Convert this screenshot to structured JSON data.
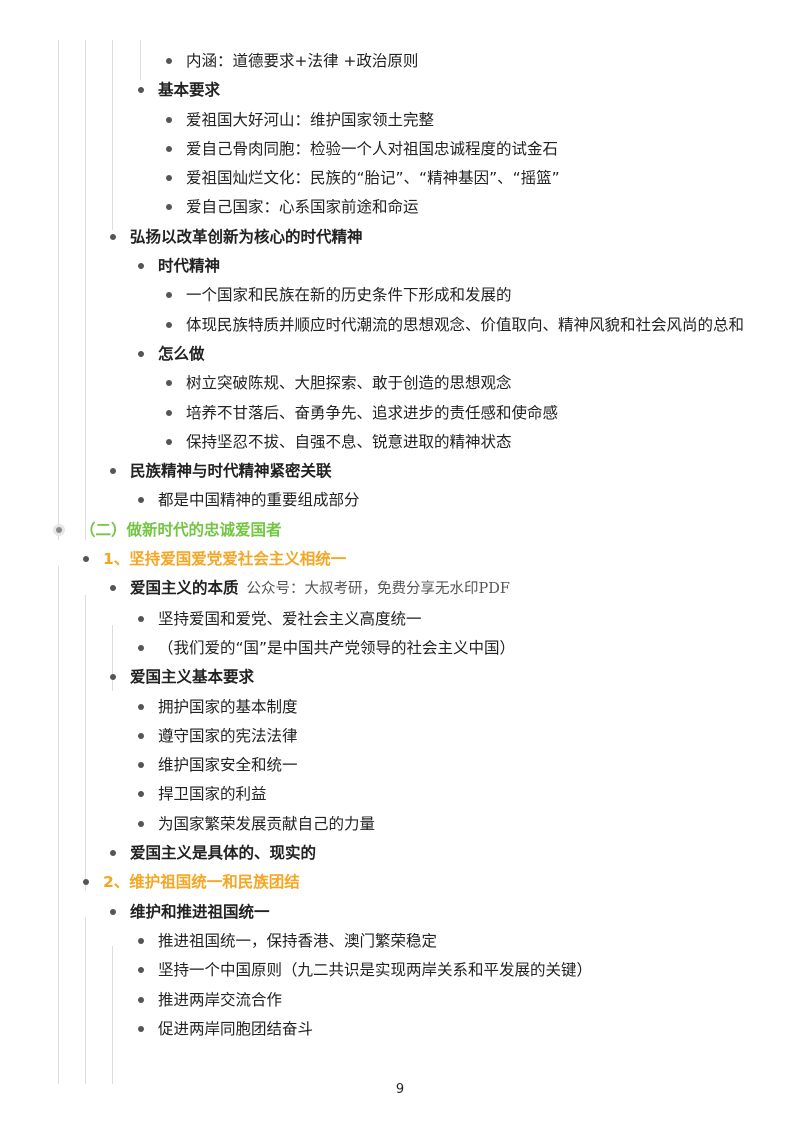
{
  "items": [
    {
      "level": 4,
      "text": "内涵：道德要求+法律 +政治原则"
    },
    {
      "level": 3,
      "text": "基本要求",
      "bold": true
    },
    {
      "level": 4,
      "text": "爱祖国大好河山：维护国家领土完整"
    },
    {
      "level": 4,
      "text": "爱自己骨肉同胞：检验一个人对祖国忠诚程度的试金石"
    },
    {
      "level": 4,
      "text": "爱祖国灿烂文化：民族的“胎记”、“精神基因”、“摇篮”"
    },
    {
      "level": 4,
      "text": "爱自己国家：心系国家前途和命运"
    },
    {
      "level": 2,
      "text": "弘扬以改革创新为核心的时代精神",
      "bold": true
    },
    {
      "level": 3,
      "text": "时代精神",
      "bold": true
    },
    {
      "level": 4,
      "text": "一个国家和民族在新的历史条件下形成和发展的"
    },
    {
      "level": 4,
      "text": "体现民族特质并顺应时代潮流的思想观念、价值取向、精神风貌和社会风尚的总和"
    },
    {
      "level": 3,
      "text": "怎么做",
      "bold": true
    },
    {
      "level": 4,
      "text": "树立突破陈规、大胆探索、敢于创造的思想观念"
    },
    {
      "level": 4,
      "text": "培养不甘落后、奋勇争先、追求进步的责任感和使命感"
    },
    {
      "level": 4,
      "text": "保持坚忍不拔、自强不息、锐意进取的精神状态"
    },
    {
      "level": 2,
      "text": "民族精神与时代精神紧密关联",
      "bold": true
    },
    {
      "level": 3,
      "text": "都是中国精神的重要组成部分"
    },
    {
      "level": 0,
      "text": "（二）做新时代的忠诚爱国者",
      "bold": true,
      "color": "#73c543"
    },
    {
      "level": 1,
      "text": "1、坚持爱国爱党爱社会主义相统一",
      "bold": true,
      "color": "#f5a623"
    },
    {
      "level": 2,
      "text": "爱国主义的本质",
      "bold": true,
      "note": "公众号：大叔考研，免费分享无水印PDF"
    },
    {
      "level": 3,
      "text": "坚持爱国和爱党、爱社会主义高度统一"
    },
    {
      "level": 3,
      "text": "（我们爱的“国”是中国共产党领导的社会主义中国）"
    },
    {
      "level": 2,
      "text": "爱国主义基本要求",
      "bold": true
    },
    {
      "level": 3,
      "text": "拥护国家的基本制度"
    },
    {
      "level": 3,
      "text": "遵守国家的宪法法律"
    },
    {
      "level": 3,
      "text": "维护国家安全和统一"
    },
    {
      "level": 3,
      "text": "捍卫国家的利益"
    },
    {
      "level": 3,
      "text": "为国家繁荣发展贡献自己的力量"
    },
    {
      "level": 2,
      "text": "爱国主义是具体的、现实的",
      "bold": true
    },
    {
      "level": 1,
      "text": "2、维护祖国统一和民族团结",
      "bold": true,
      "color": "#f5a623"
    },
    {
      "level": 2,
      "text": "维护和推进祖国统一",
      "bold": true
    },
    {
      "level": 3,
      "text": "推进祖国统一，保持香港、澳门繁荣稳定"
    },
    {
      "level": 3,
      "text": "坚持一个中国原则（九二共识是实现两岸关系和平发展的关键）"
    },
    {
      "level": 3,
      "text": "推进两岸交流合作"
    },
    {
      "level": 3,
      "text": "促进两岸同胞团结奋斗"
    }
  ],
  "page_number": "9"
}
